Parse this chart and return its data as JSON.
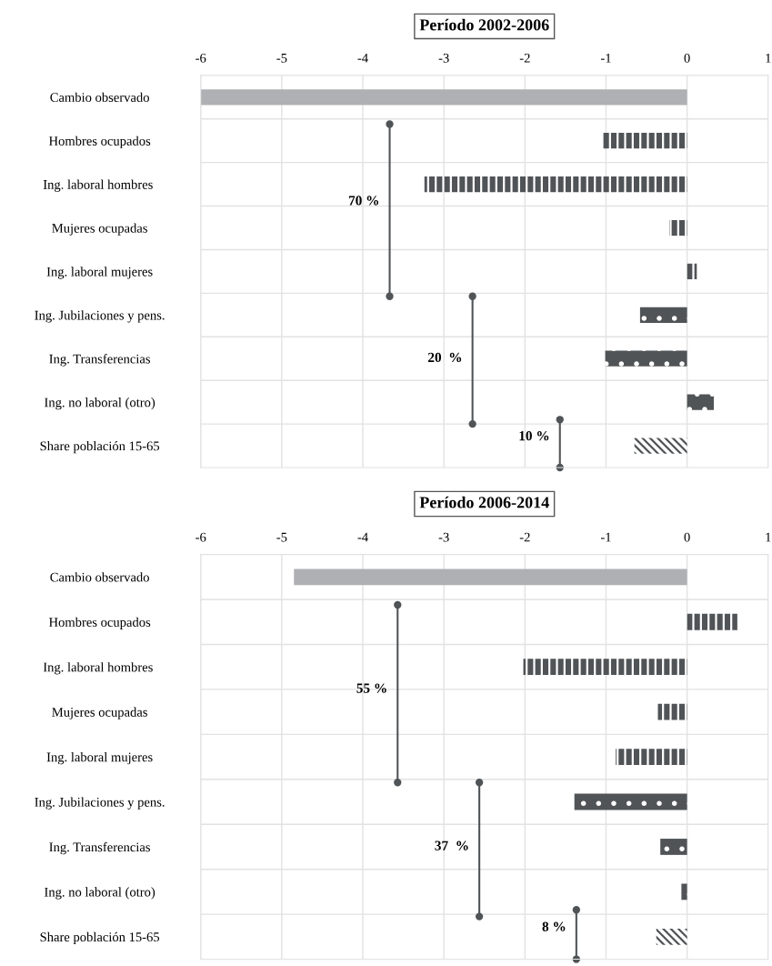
{
  "chart_data": [
    {
      "type": "bar",
      "orientation": "horizontal",
      "title": "Período 2002-2006",
      "categories": [
        "Cambio observado",
        "Hombres ocupados",
        "Ing. laboral hombres ",
        "Mujeres ocupadas",
        "Ing. laboral mujeres",
        "Ing. Jubilaciones y pens.",
        "Ing. Transferencias",
        "Ing. no laboral (otro)",
        "Share población 15-65"
      ],
      "values": [
        -6.0,
        -1.04,
        -3.24,
        -0.22,
        0.12,
        -0.58,
        -1.01,
        0.33,
        -0.65
      ],
      "colors": [
        "#afb0b3",
        "#505457",
        "#505457",
        "#505457",
        "#505457",
        "#505457",
        "#505457",
        "#505457",
        "#505457"
      ],
      "xlim": [
        -6,
        1
      ],
      "xticks": [
        -6,
        -5,
        -4,
        -3,
        -2,
        -1,
        0,
        1
      ],
      "grid": true,
      "annotations": [
        "70 %",
        "20  %",
        "10 %"
      ]
    },
    {
      "type": "bar",
      "orientation": "horizontal",
      "title": "Período 2006-2014",
      "categories": [
        "Cambio observado",
        "Hombres ocupados",
        "Ing. laboral hombres ",
        "Mujeres ocupadas",
        "Ing. laboral mujeres",
        "Ing. Jubilaciones y pens.",
        "Ing. Transferencias",
        "Ing. no laboral (otro)",
        "Share población 15-65"
      ],
      "values": [
        -4.85,
        0.62,
        -2.02,
        -0.36,
        -0.88,
        -1.39,
        -0.33,
        -0.07,
        -0.38
      ],
      "colors": [
        "#afb0b3",
        "#505457",
        "#505457",
        "#505457",
        "#505457",
        "#505457",
        "#505457",
        "#505457",
        "#505457"
      ],
      "xlim": [
        -6,
        1
      ],
      "xticks": [
        -6,
        -5,
        -4,
        -3,
        -2,
        -1,
        0,
        1
      ],
      "grid": true,
      "annotations": [
        "55 %",
        "37  %",
        "8 %"
      ]
    }
  ]
}
